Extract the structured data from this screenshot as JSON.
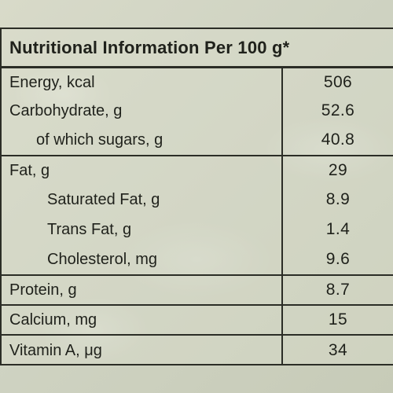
{
  "table": {
    "title": "Nutritional Information Per 100 g*",
    "rows": [
      {
        "name": "Energy, kcal",
        "value": "506"
      },
      {
        "name": "Carbohydrate, g",
        "value": "52.6"
      },
      {
        "name": "of which sugars, g",
        "value": "40.8"
      },
      {
        "name": "Fat, g",
        "value": "29"
      },
      {
        "name": "Saturated Fat, g",
        "value": "8.9"
      },
      {
        "name": "Trans Fat, g",
        "value": "1.4"
      },
      {
        "name": "Cholesterol, mg",
        "value": "9.6"
      },
      {
        "name": "Protein, g",
        "value": "8.7"
      },
      {
        "name": "Calcium, mg",
        "value": "15"
      },
      {
        "name": "Vitamin A, μg",
        "value": "34"
      }
    ]
  },
  "colors": {
    "background": "#cfd2c0",
    "ink": "#1f211b",
    "rule": "#2b2d26"
  }
}
